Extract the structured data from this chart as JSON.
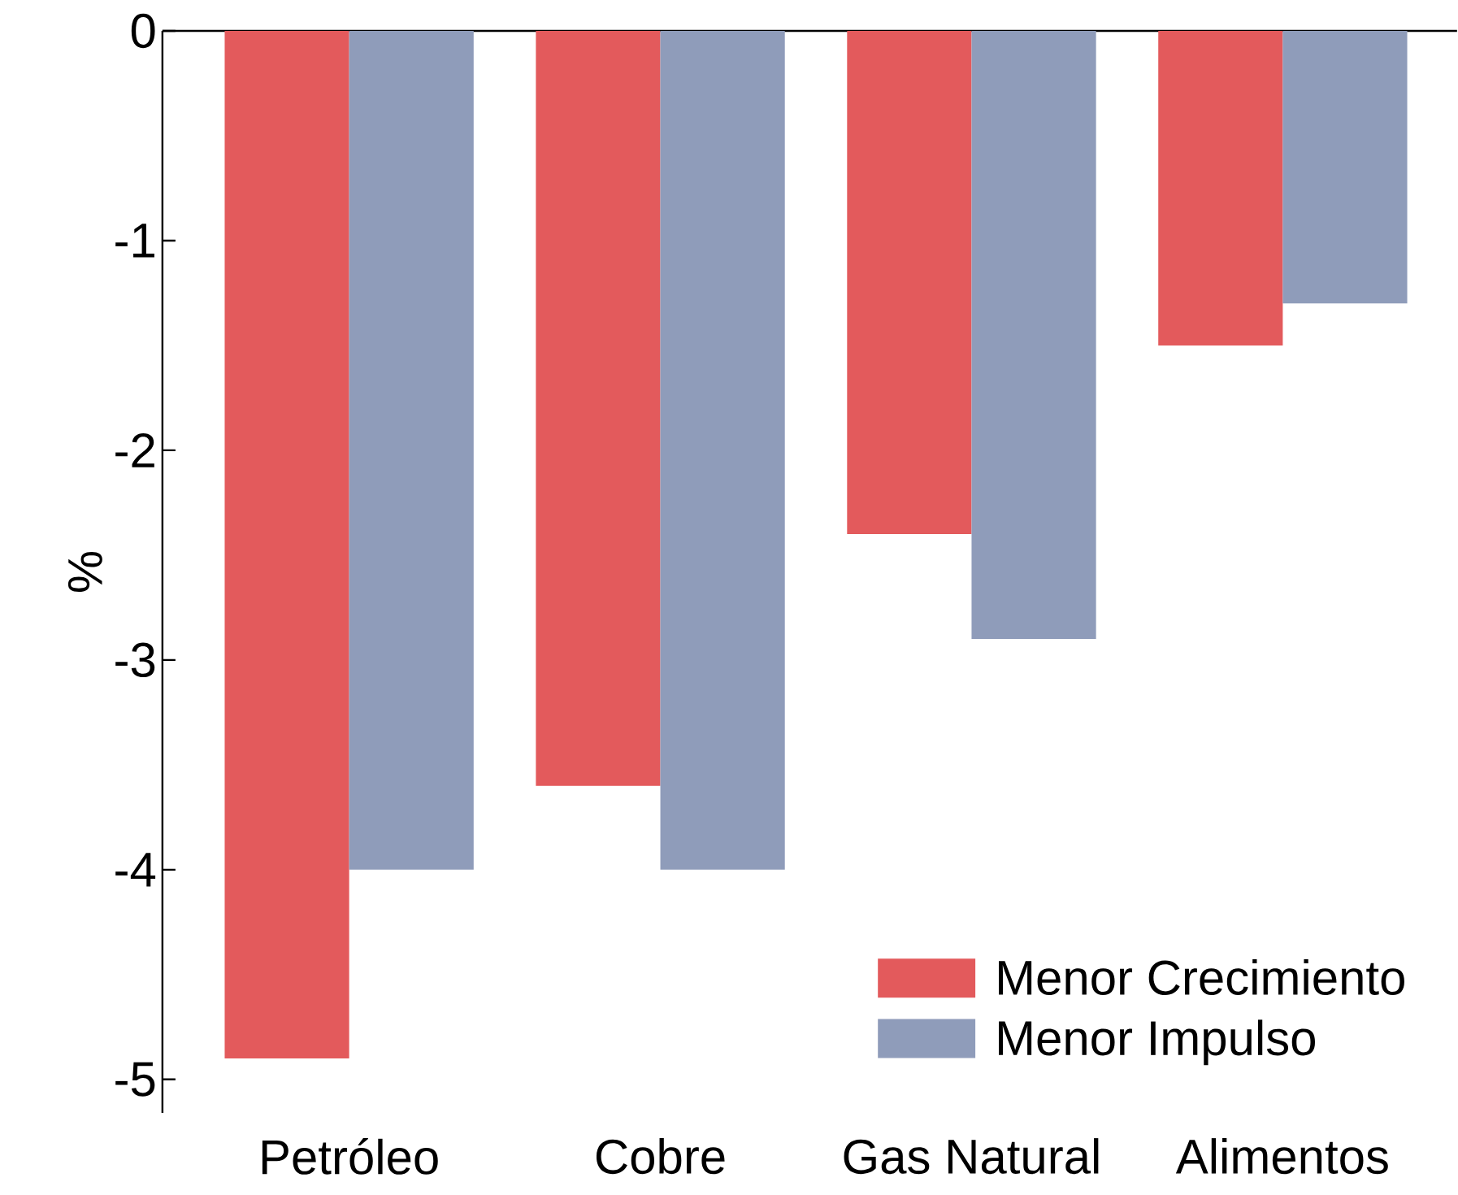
{
  "chart_data": {
    "type": "bar",
    "ylabel": "%",
    "categories": [
      "Petróleo",
      "Cobre",
      "Gas Natural",
      "Alimentos"
    ],
    "series": [
      {
        "name": "Menor Crecimiento",
        "color": "#e35a5c",
        "values": [
          -4.9,
          -3.6,
          -2.4,
          -1.5
        ]
      },
      {
        "name": "Menor Impulso",
        "color": "#8f9cba",
        "values": [
          -4.0,
          -4.0,
          -2.9,
          -1.3
        ]
      }
    ],
    "ylim": [
      -5.16,
      0
    ],
    "yticks": [
      0,
      -1,
      -2,
      -3,
      -4,
      -5
    ],
    "grid": false,
    "legend": "bottom right"
  }
}
